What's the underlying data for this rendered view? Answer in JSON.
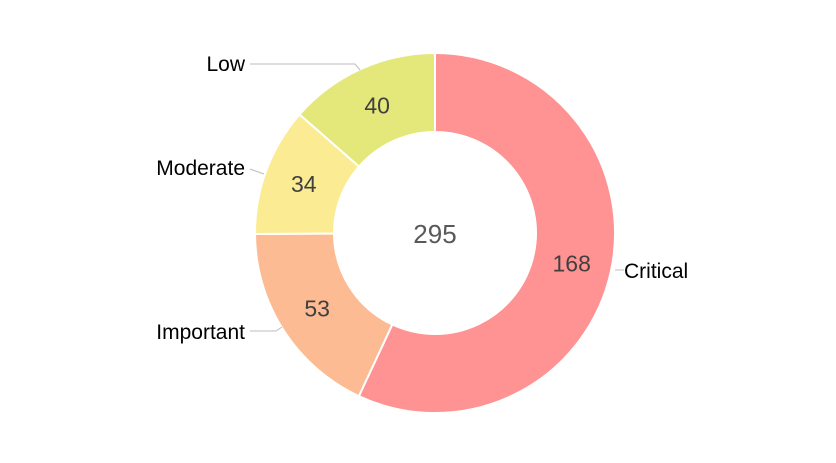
{
  "chart_data": {
    "type": "pie",
    "donut": true,
    "total_label": "295",
    "slices": [
      {
        "label": "Critical",
        "value": 168,
        "value_label": "168",
        "color": "#ff9292"
      },
      {
        "label": "Important",
        "value": 53,
        "value_label": "53",
        "color": "#fcbb92"
      },
      {
        "label": "Moderate",
        "value": 34,
        "value_label": "34",
        "color": "#fbec93"
      },
      {
        "label": "Low",
        "value": 40,
        "value_label": "40",
        "color": "#e4e77a"
      }
    ],
    "start_angle_deg": 0,
    "direction": "clockwise",
    "legend": "none"
  }
}
